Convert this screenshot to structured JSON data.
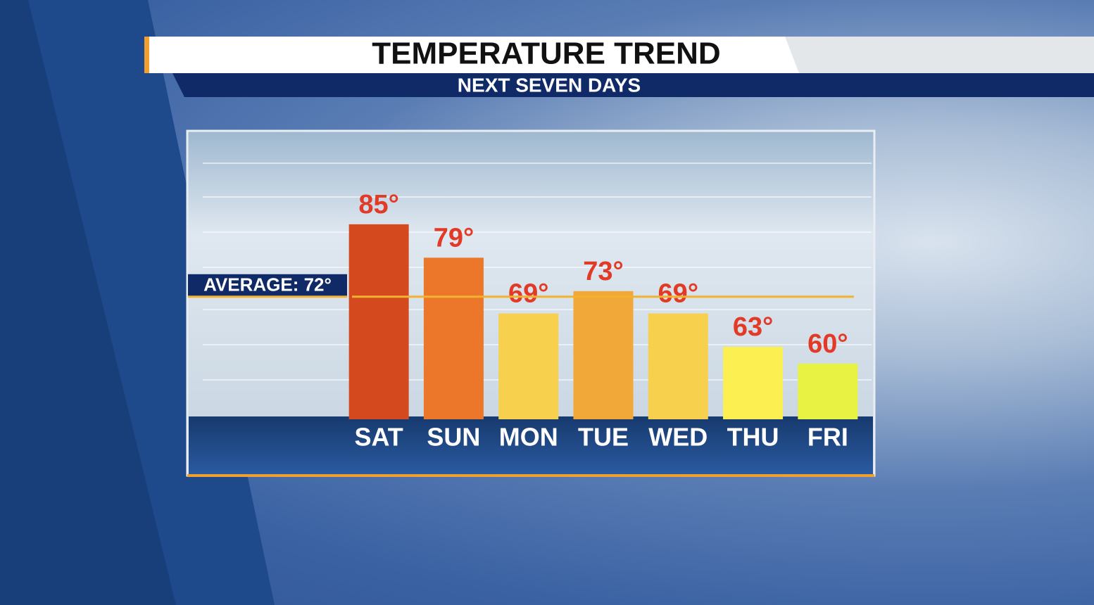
{
  "chart_data": {
    "type": "bar",
    "title": "TEMPERATURE TREND",
    "subtitle": "NEXT SEVEN DAYS",
    "categories": [
      "SAT",
      "SUN",
      "MON",
      "TUE",
      "WED",
      "THU",
      "FRI"
    ],
    "values": [
      85,
      79,
      69,
      73,
      69,
      63,
      60
    ],
    "value_labels": [
      "85°",
      "79°",
      "69°",
      "73°",
      "69°",
      "63°",
      "60°"
    ],
    "colors": [
      "#d44a1e",
      "#ec772b",
      "#f7d04e",
      "#f2a838",
      "#f7d04e",
      "#fbef52",
      "#e8f243"
    ],
    "average": {
      "value": 72,
      "label": "AVERAGE: 72°",
      "color": "#f2b230"
    },
    "ylim": [
      50,
      100
    ]
  }
}
